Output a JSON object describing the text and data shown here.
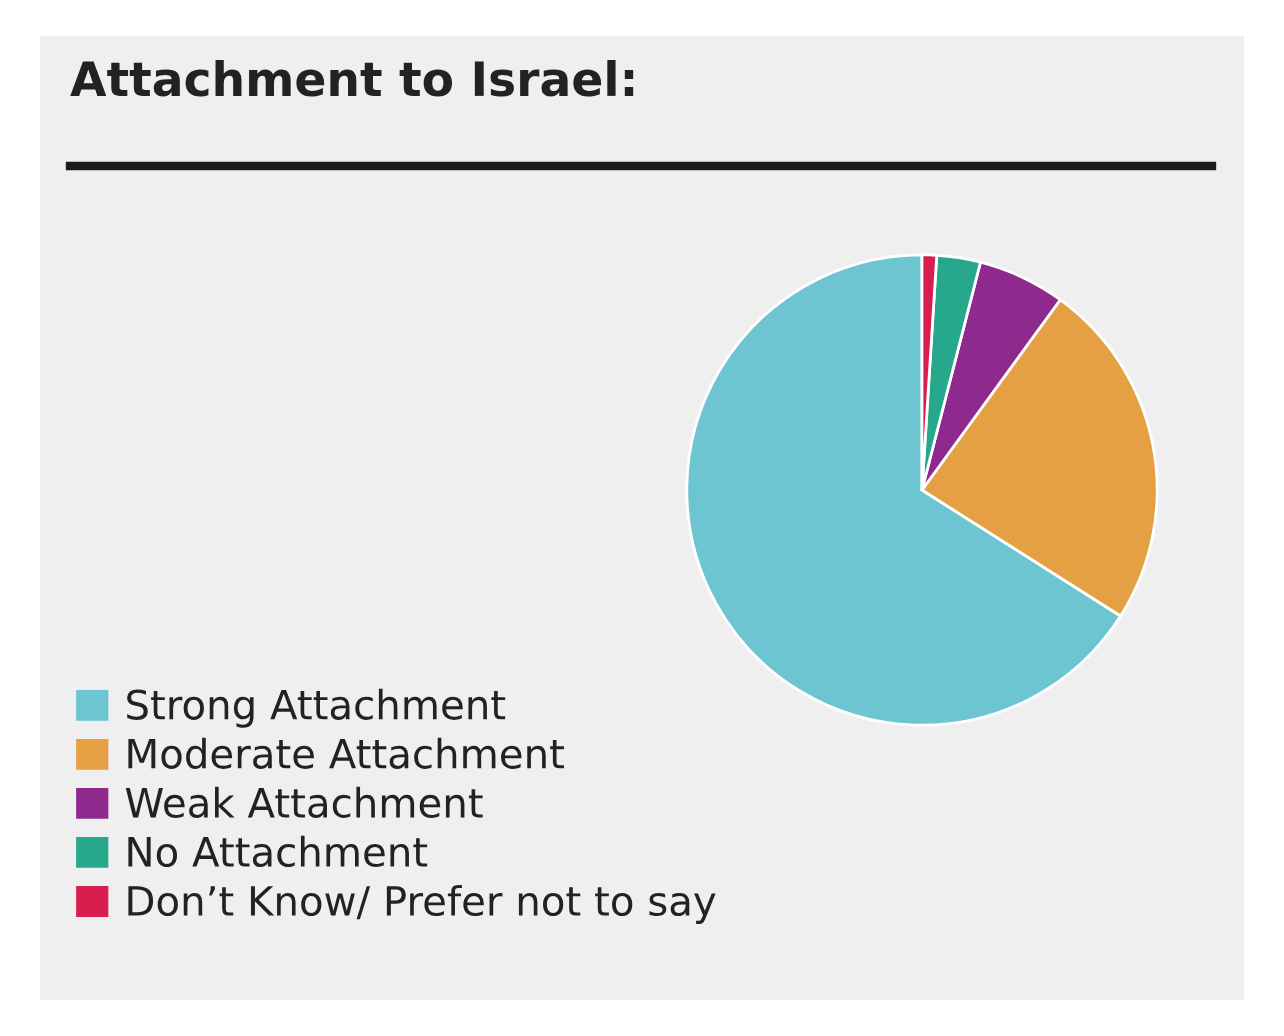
{
  "chart_data": {
    "type": "pie",
    "title": "Attachment to Israel:",
    "categories": [
      "Strong Attachment",
      "Moderate Attachment",
      "Weak Attachment",
      "No Attachment",
      "Don’t Know/ Prefer not to say"
    ],
    "values": [
      66,
      24,
      6,
      3,
      1
    ],
    "colors": [
      "#6cc5d0",
      "#e4a043",
      "#8e2a8d",
      "#27a88c",
      "#d81e4e"
    ],
    "legend": "bottom left"
  }
}
